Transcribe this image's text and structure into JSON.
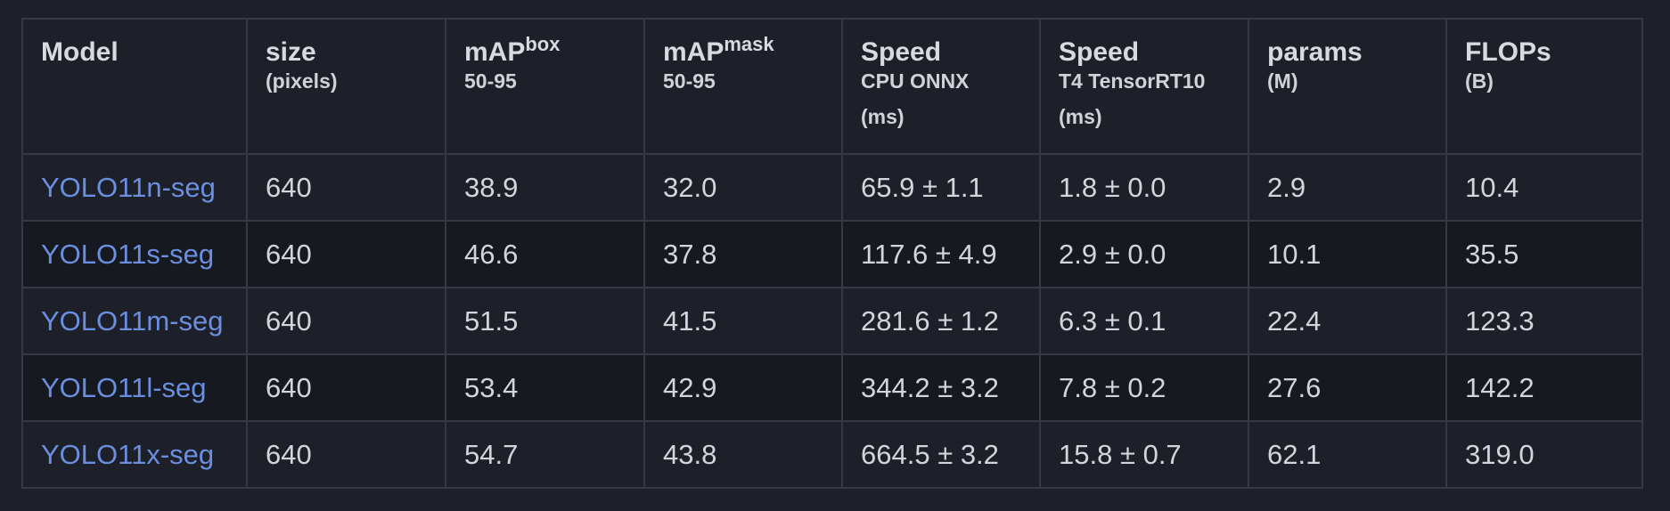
{
  "table": {
    "headers": [
      {
        "main": "Model",
        "sup": "",
        "sub": "",
        "unit": ""
      },
      {
        "main": "size",
        "sup": "",
        "sub": "(pixels)",
        "unit": ""
      },
      {
        "main": "mAP",
        "sup": "box",
        "sub": "50-95",
        "unit": ""
      },
      {
        "main": "mAP",
        "sup": "mask",
        "sub": "50-95",
        "unit": ""
      },
      {
        "main": "Speed",
        "sup": "",
        "sub": "CPU ONNX",
        "unit": "(ms)"
      },
      {
        "main": "Speed",
        "sup": "",
        "sub": "T4 TensorRT10",
        "unit": "(ms)"
      },
      {
        "main": "params",
        "sup": "",
        "sub": "(M)",
        "unit": ""
      },
      {
        "main": "FLOPs",
        "sup": "",
        "sub": "(B)",
        "unit": ""
      }
    ],
    "rows": [
      [
        "YOLO11n-seg",
        "640",
        "38.9",
        "32.0",
        "65.9 ± 1.1",
        "1.8 ± 0.0",
        "2.9",
        "10.4"
      ],
      [
        "YOLO11s-seg",
        "640",
        "46.6",
        "37.8",
        "117.6 ± 4.9",
        "2.9 ± 0.0",
        "10.1",
        "35.5"
      ],
      [
        "YOLO11m-seg",
        "640",
        "51.5",
        "41.5",
        "281.6 ± 1.2",
        "6.3 ± 0.1",
        "22.4",
        "123.3"
      ],
      [
        "YOLO11l-seg",
        "640",
        "53.4",
        "42.9",
        "344.2 ± 3.2",
        "7.8 ± 0.2",
        "27.6",
        "142.2"
      ],
      [
        "YOLO11x-seg",
        "640",
        "54.7",
        "43.8",
        "664.5 ± 3.2",
        "15.8 ± 0.7",
        "62.1",
        "319.0"
      ]
    ]
  },
  "colors": {
    "background": "#1e2029",
    "row_alt": "#171920",
    "border": "#363944",
    "text": "#d3d5db",
    "link": "#6b8fe0"
  }
}
